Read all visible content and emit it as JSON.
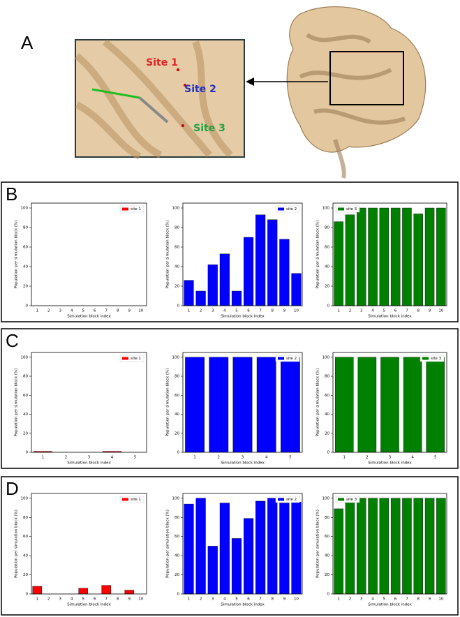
{
  "panel_labels": [
    "A",
    "B",
    "C",
    "D"
  ],
  "site_labels": [
    "Site 1",
    "Site 2",
    "Site 3"
  ],
  "chart_data": [
    {
      "type": "bar",
      "x_label": "Simulation block index",
      "y_label": "Population per simulation block (%)",
      "categories": [
        "1",
        "2",
        "3",
        "4",
        "5",
        "6",
        "7",
        "8",
        "9",
        "10"
      ],
      "series": [
        {
          "name": "site 1",
          "color": "#ff0000",
          "values": [
            0,
            0,
            0,
            0,
            0,
            0,
            0,
            0,
            0,
            0
          ]
        }
      ],
      "ylim": [
        0,
        105
      ],
      "yticks": [
        0,
        20,
        40,
        60,
        80,
        100
      ],
      "legend": "upper right"
    },
    {
      "type": "bar",
      "x_label": "Simulation block index",
      "y_label": "Population per simulation block (%)",
      "categories": [
        "1",
        "2",
        "3",
        "4",
        "5",
        "6",
        "7",
        "8",
        "9",
        "10"
      ],
      "series": [
        {
          "name": "site 2",
          "color": "#0000ff",
          "values": [
            26,
            15,
            42,
            53,
            15,
            70,
            93,
            88,
            68,
            33
          ]
        }
      ],
      "ylim": [
        0,
        105
      ],
      "yticks": [
        0,
        20,
        40,
        60,
        80,
        100
      ],
      "legend": "upper right"
    },
    {
      "type": "bar",
      "x_label": "Simulation block index",
      "y_label": "Population per simulation block (%)",
      "categories": [
        "1",
        "2",
        "3",
        "4",
        "5",
        "6",
        "7",
        "8",
        "9",
        "10"
      ],
      "series": [
        {
          "name": "site 3",
          "color": "#008000",
          "values": [
            86,
            93,
            100,
            100,
            100,
            100,
            100,
            94,
            100,
            100
          ]
        }
      ],
      "ylim": [
        0,
        105
      ],
      "yticks": [
        0,
        20,
        40,
        60,
        80,
        100
      ],
      "legend": "upper left"
    },
    {
      "type": "bar",
      "x_label": "Simulation block index",
      "y_label": "Population per simulation block (%)",
      "categories": [
        "1",
        "2",
        "3",
        "4",
        "5"
      ],
      "series": [
        {
          "name": "site 1",
          "color": "#ff0000",
          "values": [
            1,
            0,
            0,
            1,
            0
          ]
        }
      ],
      "ylim": [
        0,
        105
      ],
      "yticks": [
        0,
        20,
        40,
        60,
        80,
        100
      ],
      "legend": "upper right"
    },
    {
      "type": "bar",
      "x_label": "Simulation block index",
      "y_label": "Population per simulation block (%)",
      "categories": [
        "1",
        "2",
        "3",
        "4",
        "5"
      ],
      "series": [
        {
          "name": "site 2",
          "color": "#0000ff",
          "values": [
            100,
            100,
            100,
            100,
            100
          ]
        }
      ],
      "ylim": [
        0,
        105
      ],
      "yticks": [
        0,
        20,
        40,
        60,
        80,
        100
      ],
      "legend": "upper right"
    },
    {
      "type": "bar",
      "x_label": "Simulation block index",
      "y_label": "Population per simulation block (%)",
      "categories": [
        "1",
        "2",
        "3",
        "4",
        "5"
      ],
      "series": [
        {
          "name": "site 3",
          "color": "#008000",
          "values": [
            100,
            100,
            100,
            100,
            100
          ]
        }
      ],
      "ylim": [
        0,
        105
      ],
      "yticks": [
        0,
        20,
        40,
        60,
        80,
        100
      ],
      "legend": "upper right"
    },
    {
      "type": "bar",
      "x_label": "Simulation block index",
      "y_label": "Population per simulation block (%)",
      "categories": [
        "1",
        "2",
        "3",
        "4",
        "5",
        "6",
        "7",
        "8",
        "9",
        "10"
      ],
      "series": [
        {
          "name": "site 1",
          "color": "#ff0000",
          "values": [
            8,
            0,
            0,
            0,
            6,
            0,
            9,
            0,
            4,
            0
          ]
        }
      ],
      "ylim": [
        0,
        105
      ],
      "yticks": [
        0,
        20,
        40,
        60,
        80,
        100
      ],
      "legend": "upper right"
    },
    {
      "type": "bar",
      "x_label": "Simulation block index",
      "y_label": "Population per simulation block (%)",
      "categories": [
        "1",
        "2",
        "3",
        "4",
        "5",
        "6",
        "7",
        "8",
        "9",
        "10"
      ],
      "series": [
        {
          "name": "site 2",
          "color": "#0000ff",
          "values": [
            94,
            100,
            50,
            95,
            58,
            79,
            97,
            100,
            95,
            96
          ]
        }
      ],
      "ylim": [
        0,
        105
      ],
      "yticks": [
        0,
        20,
        40,
        60,
        80,
        100
      ],
      "legend": "upper right"
    },
    {
      "type": "bar",
      "x_label": "Simulation block index",
      "y_label": "Population per simulation block (%)",
      "categories": [
        "1",
        "2",
        "3",
        "4",
        "5",
        "6",
        "7",
        "8",
        "9",
        "10"
      ],
      "series": [
        {
          "name": "site 3",
          "color": "#008000",
          "values": [
            89,
            100,
            100,
            100,
            100,
            100,
            100,
            100,
            100,
            100
          ]
        }
      ],
      "ylim": [
        0,
        105
      ],
      "yticks": [
        0,
        20,
        40,
        60,
        80,
        100
      ],
      "legend": "upper left"
    }
  ]
}
